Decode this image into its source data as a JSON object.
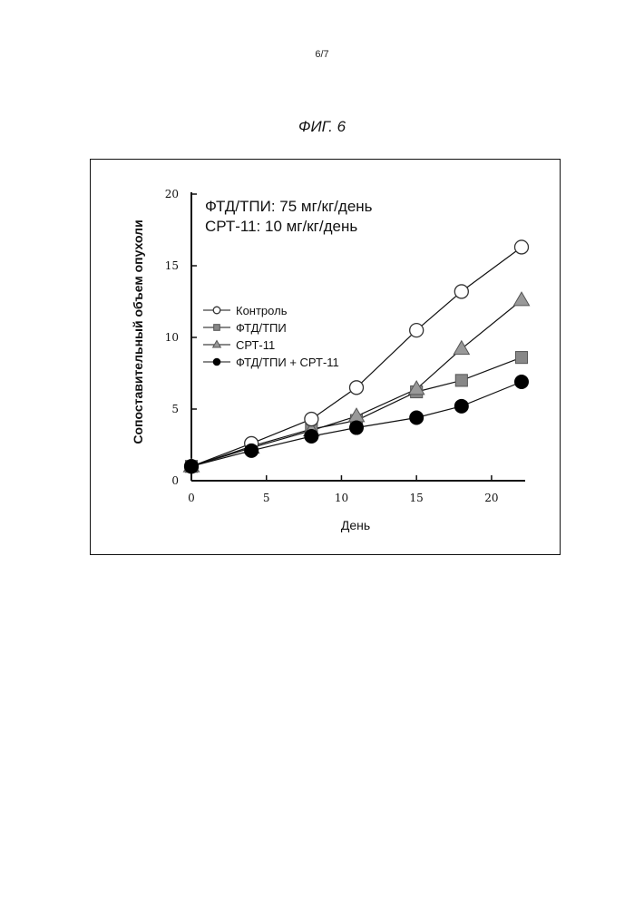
{
  "page": {
    "page_number": "6/7",
    "figure_title": "ФИГ. 6"
  },
  "chart_data": {
    "type": "line",
    "title": "",
    "xlabel": "День",
    "ylabel": "Сопоставительный объем опухоли",
    "xlim": [
      0,
      22
    ],
    "ylim": [
      0,
      20
    ],
    "xticks": [
      0,
      5,
      10,
      15,
      20
    ],
    "yticks": [
      0,
      5,
      10,
      15,
      20
    ],
    "grid": false,
    "legend_position": "left-middle",
    "annotations": [
      "ФТД/ТПИ: 75 мг/кг/день",
      "СРТ-11: 10 мг/кг/день"
    ],
    "series": [
      {
        "name": "Контроль",
        "marker": "open-circle",
        "color": "#555555",
        "x": [
          0,
          4,
          8,
          11,
          15,
          18,
          22
        ],
        "y": [
          1.0,
          2.6,
          4.3,
          6.5,
          10.5,
          13.2,
          16.3
        ]
      },
      {
        "name": "ФТД/ТПИ",
        "marker": "square",
        "color": "#888888",
        "x": [
          0,
          4,
          8,
          11,
          15,
          18,
          22
        ],
        "y": [
          1.0,
          2.4,
          3.6,
          4.2,
          6.2,
          7.0,
          8.6
        ]
      },
      {
        "name": "СРТ-11",
        "marker": "triangle",
        "color": "#999999",
        "x": [
          0,
          4,
          8,
          11,
          15,
          18,
          22
        ],
        "y": [
          1.0,
          2.3,
          3.5,
          4.5,
          6.4,
          9.2,
          12.6
        ]
      },
      {
        "name": "ФТД/ТПИ + СРТ-11",
        "marker": "filled-circle",
        "color": "#000000",
        "x": [
          0,
          4,
          8,
          11,
          15,
          18,
          22
        ],
        "y": [
          1.0,
          2.1,
          3.1,
          3.7,
          4.4,
          5.2,
          6.9
        ]
      }
    ]
  }
}
